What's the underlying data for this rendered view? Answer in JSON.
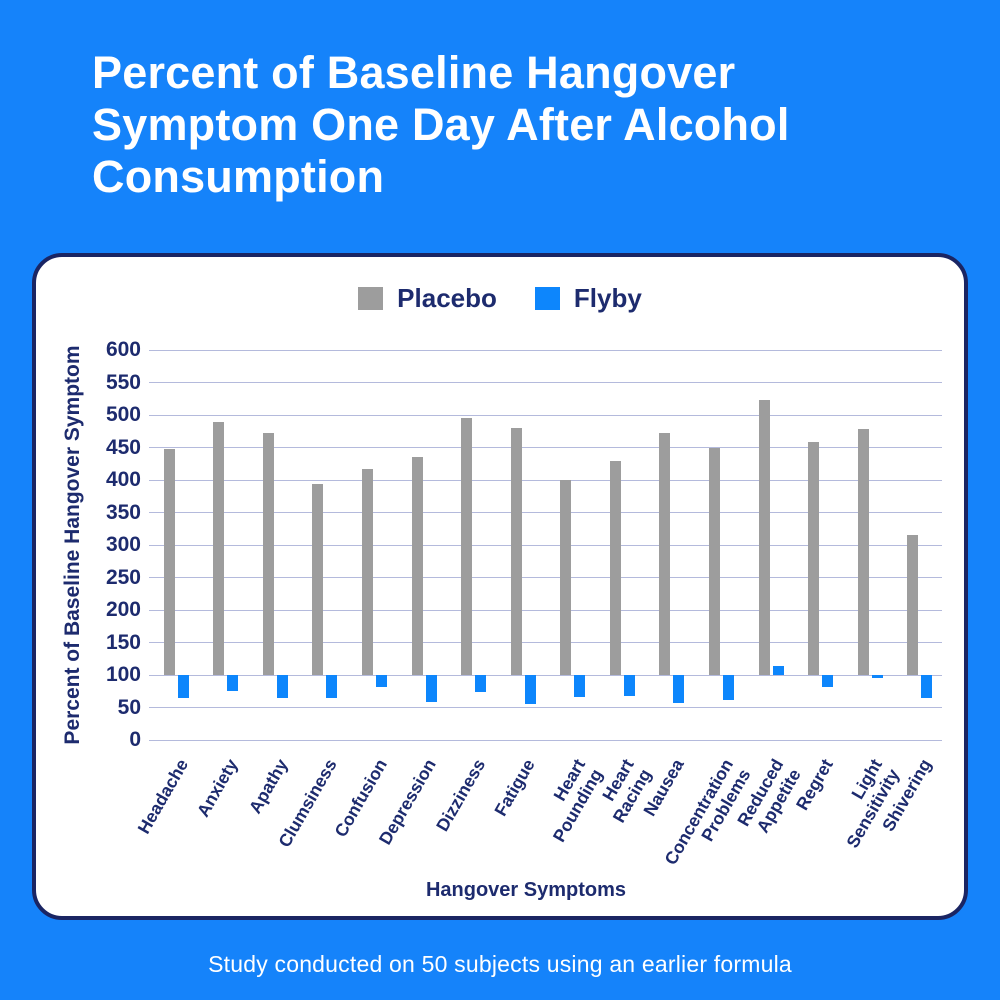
{
  "header": {
    "title": "Percent of Baseline Hangover Symptom One Day After Alcohol Consumption"
  },
  "footer": {
    "text": "Study conducted on 50 subjects using an earlier formula"
  },
  "colors": {
    "background": "#1583FA",
    "card_background": "#FFFFFF",
    "card_border": "#1A2563",
    "navy_text": "#1D2B6E",
    "title_text": "#FFFFFF",
    "gridline": "#B4BADC",
    "placebo_bar": "#9D9D9D",
    "flyby_bar": "#0D86FC"
  },
  "chart_data": {
    "type": "bar",
    "title": "",
    "xlabel": "Hangover Symptoms",
    "ylabel": "Percent of Baseline Hangover Symptom",
    "ylim": [
      0,
      600
    ],
    "ytick_step": 50,
    "bar_baseline": 100,
    "grid": true,
    "legend_position": "top-center",
    "categories": [
      "Headache",
      "Anxiety",
      "Apathy",
      "Clumsiness",
      "Confusion",
      "Depression",
      "Dizziness",
      "Fatigue",
      "Heart\nPounding",
      "Heart\nRacing",
      "Nausea",
      "Concentration\nProblems",
      "Reduced\nAppetite",
      "Regret",
      "Light Sensitivity",
      "Shivering"
    ],
    "series": [
      {
        "name": "Placebo",
        "color": "#9D9D9D",
        "values": [
          447,
          490,
          472,
          394,
          417,
          436,
          496,
          480,
          400,
          430,
          473,
          449,
          523,
          459,
          479,
          316
        ]
      },
      {
        "name": "Flyby",
        "color": "#0D86FC",
        "values": [
          64,
          76,
          64,
          64,
          82,
          58,
          74,
          56,
          66,
          67,
          57,
          61,
          114,
          81,
          95,
          64
        ]
      }
    ]
  }
}
